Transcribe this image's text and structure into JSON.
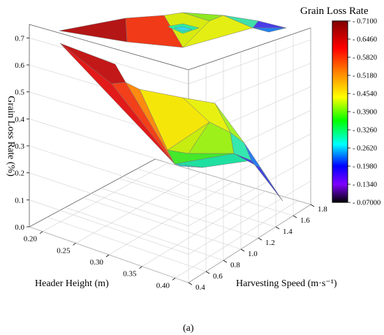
{
  "chart_data": {
    "type": "surface3d",
    "panel_label": "(a)",
    "zlabel": "Grain Loss Rate (%)",
    "xlabel": "Header Height (m)",
    "ylabel": "Harvesting Speed (m·s⁻¹)",
    "x_ticks": [
      "0.20",
      "0.25",
      "0.30",
      "0.35",
      "0.40"
    ],
    "y_ticks": [
      "0.4",
      "0.6",
      "0.8",
      "1.0",
      "1.2",
      "1.4",
      "1.6",
      "1.8"
    ],
    "z_ticks": [
      "0.0",
      "0.1",
      "0.2",
      "0.3",
      "0.4",
      "0.5",
      "0.6",
      "0.7"
    ],
    "x_range": [
      0.18,
      0.42
    ],
    "y_range": [
      0.4,
      1.8
    ],
    "z_range": [
      0.0,
      0.75
    ],
    "grid": true,
    "colorbar": {
      "title": "Grain Loss Rate",
      "ticks": [
        "0.7100",
        "0.6460",
        "0.5820",
        "0.5180",
        "0.4540",
        "0.3900",
        "0.3260",
        "0.2620",
        "0.1980",
        "0.1340",
        "0.07000"
      ],
      "min": 0.07,
      "max": 0.71,
      "colors": [
        "#000000",
        "#7f00ff",
        "#0000ff",
        "#00ffff",
        "#00ff00",
        "#ffff00",
        "#ff8000",
        "#ff0000",
        "#800000"
      ]
    },
    "surfaces": [
      {
        "name": "",
        "points": [
          {
            "x": 0.2,
            "y": 0.4,
            "z": 0.69
          },
          {
            "x": 0.26,
            "y": 0.8,
            "z": 0.61
          },
          {
            "x": 0.3,
            "y": 1.0,
            "z": 0.4
          },
          {
            "x": 0.34,
            "y": 1.1,
            "z": 0.32
          },
          {
            "x": 0.4,
            "y": 1.0,
            "z": 0.06
          },
          {
            "x": 0.33,
            "y": 1.4,
            "z": 0.47
          },
          {
            "x": 0.27,
            "y": 1.1,
            "z": 0.33
          },
          {
            "x": 0.3,
            "y": 1.5,
            "z": 0.42
          }
        ]
      },
      {
        "name": "",
        "points": [
          {
            "x": 0.2,
            "y": 0.5,
            "z": 0.7
          },
          {
            "x": 0.25,
            "y": 1.0,
            "z": 0.69
          },
          {
            "x": 0.28,
            "y": 1.4,
            "z": 0.62
          },
          {
            "x": 0.3,
            "y": 1.8,
            "z": 0.7
          },
          {
            "x": 0.22,
            "y": 1.6,
            "z": 0.71
          }
        ]
      }
    ]
  }
}
